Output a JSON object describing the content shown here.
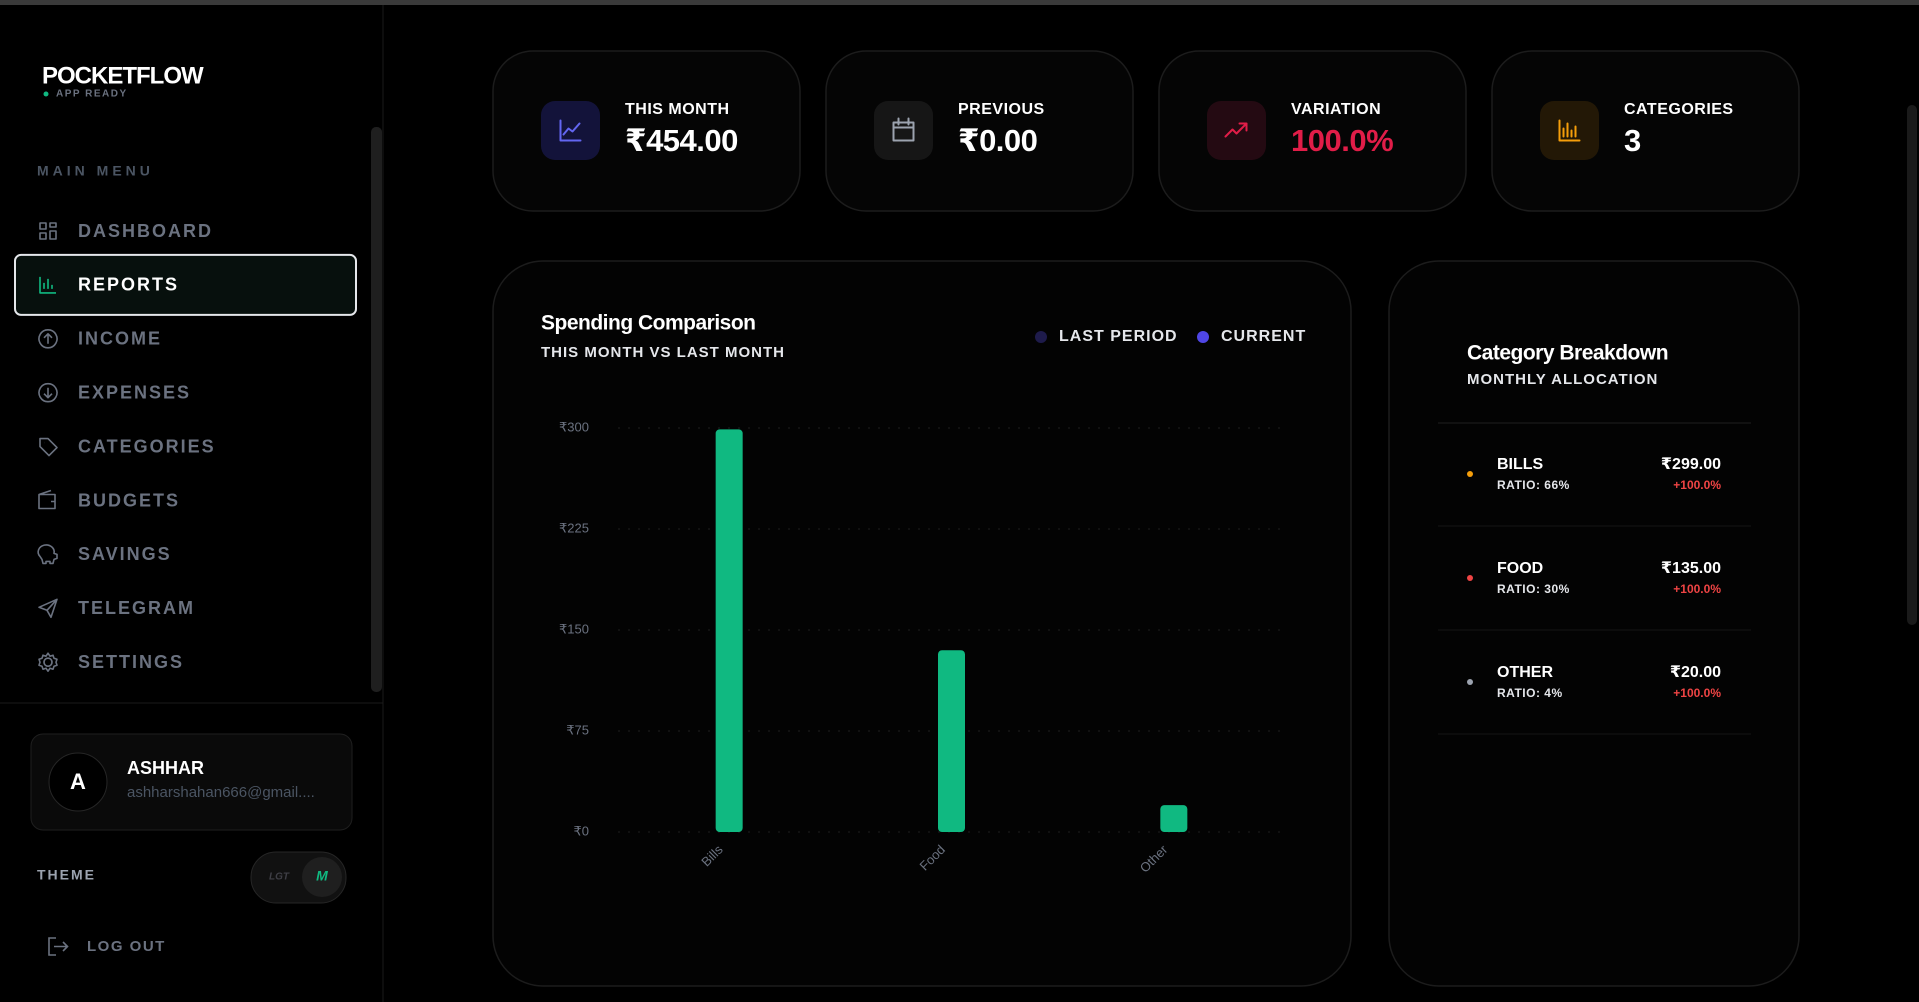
{
  "brand": {
    "name": "POCKETFLOW",
    "status": "APP READY"
  },
  "menu": {
    "title": "MAIN MENU",
    "items": [
      "DASHBOARD",
      "REPORTS",
      "INCOME",
      "EXPENSES",
      "CATEGORIES",
      "BUDGETS",
      "SAVINGS",
      "TELEGRAM",
      "SETTINGS"
    ]
  },
  "user": {
    "initial": "A",
    "name": "ASHHAR",
    "email": "ashharshahan666@gmail...."
  },
  "theme": {
    "label": "THEME",
    "light": "LGT",
    "dark": "M"
  },
  "logout": "LOG OUT",
  "stats": [
    {
      "label": "THIS MONTH",
      "value": "₹454.00",
      "accent": "#6366f1",
      "value_color": "#ffffff"
    },
    {
      "label": "PREVIOUS",
      "value": "₹0.00",
      "accent": "#9ca3af",
      "value_color": "#ffffff"
    },
    {
      "label": "VARIATION",
      "value": "100.0%",
      "accent": "#e11d48",
      "value_color": "#e11d48"
    },
    {
      "label": "CATEGORIES",
      "value": "3",
      "accent": "#f59e0b",
      "value_color": "#ffffff"
    }
  ],
  "chart_data": {
    "type": "bar",
    "title": "Spending Comparison",
    "subtitle": "THIS MONTH VS LAST MONTH",
    "categories": [
      "Bills",
      "Food",
      "Other"
    ],
    "series": [
      {
        "name": "LAST PERIOD",
        "color": "#1e1b4b",
        "values": [
          0,
          0,
          0
        ]
      },
      {
        "name": "CURRENT",
        "color": "#4f46e5",
        "bar_color": "#10b981",
        "values": [
          299,
          135,
          20
        ]
      }
    ],
    "ylim": [
      0,
      300
    ],
    "yticks": [
      {
        "value": 0,
        "label": "₹0"
      },
      {
        "value": 75,
        "label": "₹75"
      },
      {
        "value": 150,
        "label": "₹150"
      },
      {
        "value": 225,
        "label": "₹225"
      },
      {
        "value": 300,
        "label": "₹300"
      }
    ],
    "grid": true
  },
  "breakdown": {
    "title": "Category Breakdown",
    "subtitle": "MONTHLY ALLOCATION",
    "items": [
      {
        "name": "BILLS",
        "ratio": "RATIO: 66%",
        "amount": "₹299.00",
        "change": "+100.0%",
        "color": "#f59e0b"
      },
      {
        "name": "FOOD",
        "ratio": "RATIO: 30%",
        "amount": "₹135.00",
        "change": "+100.0%",
        "color": "#ef4444"
      },
      {
        "name": "OTHER",
        "ratio": "RATIO: 4%",
        "amount": "₹20.00",
        "change": "+100.0%",
        "color": "#9ca3af"
      }
    ]
  }
}
